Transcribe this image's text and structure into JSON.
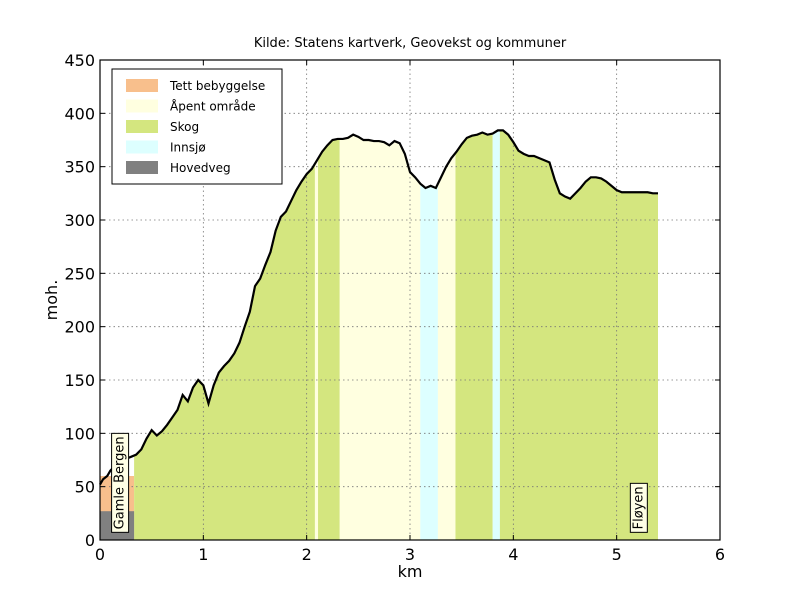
{
  "chart_data": {
    "type": "area",
    "title": "Kilde: Statens kartverk, Geovekst og kommuner",
    "xlabel": "km",
    "ylabel": "moh.",
    "xlim": [
      0,
      6
    ],
    "ylim": [
      0,
      450
    ],
    "xticks": [
      0,
      1,
      2,
      3,
      4,
      5,
      6
    ],
    "yticks": [
      0,
      50,
      100,
      150,
      200,
      250,
      300,
      350,
      400,
      450
    ],
    "grid": true,
    "legend_position": "top-left",
    "legend": [
      {
        "name": "Tett bebyggelse",
        "color": "#f8bf8c"
      },
      {
        "name": "Åpent område",
        "color": "#ffffe0"
      },
      {
        "name": "Skog",
        "color": "#d4e67f"
      },
      {
        "name": "Innsjø",
        "color": "#ddffff"
      },
      {
        "name": "Hovedveg",
        "color": "#808080"
      }
    ],
    "profile": {
      "x": [
        0.0,
        0.03,
        0.07,
        0.1,
        0.15,
        0.2,
        0.25,
        0.3,
        0.35,
        0.4,
        0.45,
        0.5,
        0.55,
        0.6,
        0.65,
        0.7,
        0.75,
        0.8,
        0.85,
        0.9,
        0.95,
        1.0,
        1.05,
        1.1,
        1.15,
        1.2,
        1.25,
        1.3,
        1.35,
        1.4,
        1.45,
        1.5,
        1.55,
        1.6,
        1.65,
        1.7,
        1.75,
        1.8,
        1.85,
        1.9,
        1.95,
        2.0,
        2.05,
        2.1,
        2.15,
        2.2,
        2.25,
        2.3,
        2.35,
        2.4,
        2.45,
        2.5,
        2.55,
        2.6,
        2.65,
        2.7,
        2.75,
        2.8,
        2.85,
        2.9,
        2.95,
        3.0,
        3.05,
        3.1,
        3.15,
        3.2,
        3.25,
        3.3,
        3.35,
        3.4,
        3.45,
        3.5,
        3.55,
        3.6,
        3.65,
        3.7,
        3.75,
        3.8,
        3.85,
        3.9,
        3.95,
        4.0,
        4.05,
        4.1,
        4.15,
        4.2,
        4.25,
        4.3,
        4.35,
        4.4,
        4.45,
        4.5,
        4.55,
        4.6,
        4.65,
        4.7,
        4.75,
        4.8,
        4.85,
        4.9,
        4.95,
        5.0,
        5.05,
        5.1,
        5.15,
        5.2,
        5.25,
        5.3,
        5.35,
        5.4
      ],
      "y": [
        52,
        57,
        60,
        65,
        70,
        74,
        76,
        78,
        80,
        85,
        95,
        103,
        98,
        102,
        108,
        115,
        122,
        136,
        130,
        143,
        150,
        145,
        128,
        145,
        157,
        163,
        168,
        175,
        185,
        200,
        214,
        238,
        245,
        258,
        270,
        290,
        303,
        308,
        318,
        328,
        336,
        343,
        348,
        356,
        364,
        370,
        375,
        376,
        376,
        377,
        380,
        378,
        375,
        375,
        374,
        374,
        373,
        370,
        374,
        372,
        362,
        345,
        340,
        334,
        330,
        332,
        330,
        340,
        350,
        358,
        364,
        371,
        377,
        379,
        380,
        382,
        380,
        381,
        384,
        384,
        380,
        373,
        365,
        362,
        360,
        360,
        358,
        356,
        354,
        338,
        325,
        322,
        320,
        325,
        330,
        336,
        340,
        340,
        339,
        336,
        332,
        328,
        326,
        326,
        326,
        326,
        326,
        326,
        325,
        325
      ]
    },
    "land_cover": [
      {
        "type": "Tett bebyggelse",
        "x_start": 0.0,
        "x_end": 0.33,
        "top": 60
      },
      {
        "type": "Skog",
        "x_start": 0.33,
        "x_end": 2.08
      },
      {
        "type": "Åpent område",
        "x_start": 2.08,
        "x_end": 2.11
      },
      {
        "type": "Skog",
        "x_start": 2.11,
        "x_end": 2.32
      },
      {
        "type": "Åpent område",
        "x_start": 2.32,
        "x_end": 3.1
      },
      {
        "type": "Innsjø",
        "x_start": 3.1,
        "x_end": 3.27
      },
      {
        "type": "Åpent område",
        "x_start": 3.27,
        "x_end": 3.44
      },
      {
        "type": "Skog",
        "x_start": 3.44,
        "x_end": 3.8
      },
      {
        "type": "Innsjø",
        "x_start": 3.8,
        "x_end": 3.87
      },
      {
        "type": "Skog",
        "x_start": 3.87,
        "x_end": 5.4
      }
    ],
    "road_band": {
      "type": "Hovedveg",
      "x_start": 0.0,
      "x_end": 0.33,
      "top": 27
    },
    "annotations": [
      {
        "text": "Gamle Bergen",
        "x": 0.18,
        "y": 10
      },
      {
        "text": "Fløyen",
        "x": 5.2,
        "y": 10
      }
    ]
  }
}
